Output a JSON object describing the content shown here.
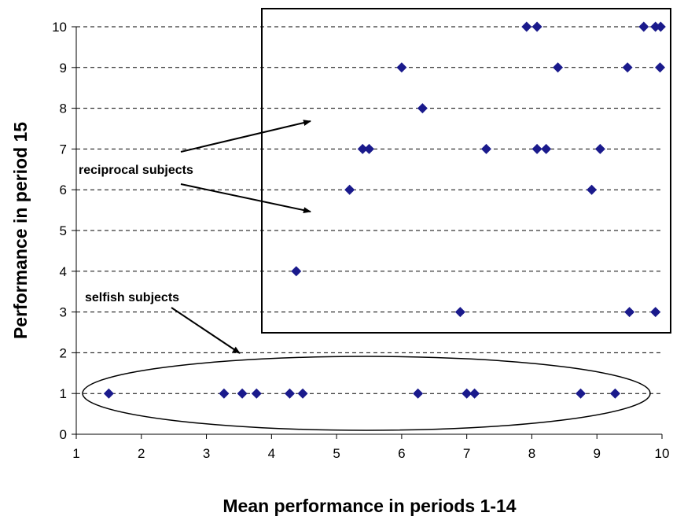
{
  "chart_data": {
    "type": "scatter",
    "title": "",
    "xlabel": "Mean performance in periods 1-14",
    "ylabel": "Performance in period 15",
    "xlim": [
      1,
      10
    ],
    "ylim": [
      0,
      10
    ],
    "xticks": [
      "1",
      "2",
      "3",
      "4",
      "5",
      "6",
      "7",
      "8",
      "9",
      "10"
    ],
    "yticks": [
      "0",
      "1",
      "2",
      "3",
      "4",
      "5",
      "6",
      "7",
      "8",
      "9",
      "10"
    ],
    "grid": "horizontal dashed",
    "marker_color": "#1a1a8c",
    "points": [
      {
        "x": 1.5,
        "y": 1
      },
      {
        "x": 3.27,
        "y": 1
      },
      {
        "x": 3.55,
        "y": 1
      },
      {
        "x": 3.77,
        "y": 1
      },
      {
        "x": 4.28,
        "y": 1
      },
      {
        "x": 4.48,
        "y": 1
      },
      {
        "x": 6.25,
        "y": 1
      },
      {
        "x": 7.0,
        "y": 1
      },
      {
        "x": 7.12,
        "y": 1
      },
      {
        "x": 8.75,
        "y": 1
      },
      {
        "x": 9.28,
        "y": 1
      },
      {
        "x": 6.9,
        "y": 3
      },
      {
        "x": 9.5,
        "y": 3
      },
      {
        "x": 9.9,
        "y": 3
      },
      {
        "x": 4.38,
        "y": 4
      },
      {
        "x": 5.2,
        "y": 6
      },
      {
        "x": 8.92,
        "y": 6
      },
      {
        "x": 5.4,
        "y": 7
      },
      {
        "x": 5.5,
        "y": 7
      },
      {
        "x": 7.3,
        "y": 7
      },
      {
        "x": 8.08,
        "y": 7
      },
      {
        "x": 8.22,
        "y": 7
      },
      {
        "x": 9.05,
        "y": 7
      },
      {
        "x": 6.32,
        "y": 8
      },
      {
        "x": 6.0,
        "y": 9
      },
      {
        "x": 8.4,
        "y": 9
      },
      {
        "x": 9.47,
        "y": 9
      },
      {
        "x": 9.97,
        "y": 9
      },
      {
        "x": 7.92,
        "y": 10
      },
      {
        "x": 8.08,
        "y": 10
      },
      {
        "x": 9.72,
        "y": 10
      },
      {
        "x": 9.9,
        "y": 10
      },
      {
        "x": 9.98,
        "y": 10
      }
    ],
    "annotations": {
      "reciprocal": "reciprocal subjects",
      "selfish": "selfish subjects"
    }
  }
}
